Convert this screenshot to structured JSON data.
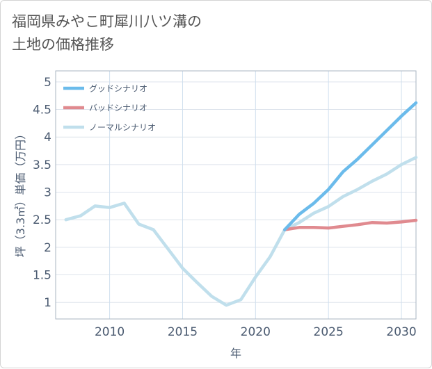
{
  "title_line1": "福岡県みやこ町犀川八ツ溝の",
  "title_line2": "土地の価格推移",
  "chart_data": {
    "type": "line",
    "xlabel": "年",
    "ylabel": "坪（3.3㎡）単価（万円）",
    "xlim": [
      2006.3,
      2031
    ],
    "ylim": [
      0.7,
      5.2
    ],
    "x_ticks": [
      2010,
      2015,
      2020,
      2025,
      2030
    ],
    "y_ticks": [
      1,
      1.5,
      2,
      2.5,
      3,
      3.5,
      4,
      4.5,
      5
    ],
    "y_tick_labels": [
      "1",
      "1.5",
      "2",
      "2.5",
      "3",
      "3.5",
      "4",
      "4.5",
      "5"
    ],
    "grid": true,
    "legend_position": "top-left",
    "series": [
      {
        "name": "ノーマルシナリオ",
        "color": "#c0dfec",
        "x": [
          2007,
          2008,
          2009,
          2010,
          2011,
          2012,
          2013,
          2014,
          2015,
          2016,
          2017,
          2018,
          2019,
          2020,
          2021,
          2022,
          2023,
          2024,
          2025,
          2026,
          2027,
          2028,
          2029,
          2030,
          2031
        ],
        "values": [
          2.5,
          2.57,
          2.75,
          2.72,
          2.8,
          2.42,
          2.32,
          1.97,
          1.62,
          1.36,
          1.11,
          0.95,
          1.05,
          1.46,
          1.83,
          2.32,
          2.45,
          2.62,
          2.74,
          2.92,
          3.05,
          3.2,
          3.33,
          3.5,
          3.63
        ]
      },
      {
        "name": "バッドシナリオ",
        "color": "#e08a8f",
        "x": [
          2022,
          2023,
          2024,
          2025,
          2026,
          2027,
          2028,
          2029,
          2030,
          2031
        ],
        "values": [
          2.32,
          2.36,
          2.36,
          2.35,
          2.38,
          2.41,
          2.45,
          2.44,
          2.46,
          2.49
        ]
      },
      {
        "name": "グッドシナリオ",
        "color": "#6bbbeb",
        "x": [
          2022,
          2023,
          2024,
          2025,
          2026,
          2027,
          2028,
          2029,
          2030,
          2031
        ],
        "values": [
          2.32,
          2.6,
          2.8,
          3.05,
          3.37,
          3.6,
          3.86,
          4.12,
          4.38,
          4.62
        ]
      }
    ],
    "legend": [
      {
        "label": "グッドシナリオ",
        "color": "#6bbbeb"
      },
      {
        "label": "バッドシナリオ",
        "color": "#e08a8f"
      },
      {
        "label": "ノーマルシナリオ",
        "color": "#c0dfec"
      }
    ]
  }
}
